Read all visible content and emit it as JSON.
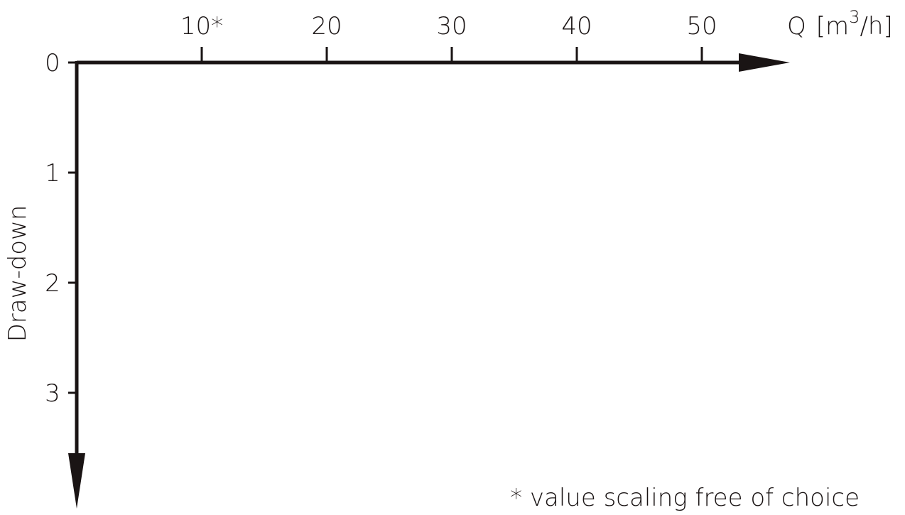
{
  "chart_data": {
    "type": "line",
    "title": "",
    "x_axis": {
      "label": "Q [m³/h]",
      "label_text": "Q",
      "label_unit_open": "[m",
      "label_unit_sup": "3",
      "label_unit_close": "/h]",
      "position": "top",
      "range": [
        0,
        55
      ],
      "ticks": [
        10,
        20,
        30,
        40,
        50
      ],
      "tick_labels": [
        "10*",
        "20",
        "30",
        "40",
        "50"
      ]
    },
    "y_axis": {
      "label": "Draw-down",
      "direction": "downward",
      "range": [
        0,
        3.6
      ],
      "ticks": [
        0,
        1,
        2,
        3
      ],
      "tick_labels": [
        "0",
        "1",
        "2",
        "3"
      ]
    },
    "series": [],
    "grid": false,
    "legend": "none",
    "footnote": "* value scaling free of choice",
    "colors": {
      "ink": "#1a1414",
      "background": "#ffffff"
    }
  }
}
